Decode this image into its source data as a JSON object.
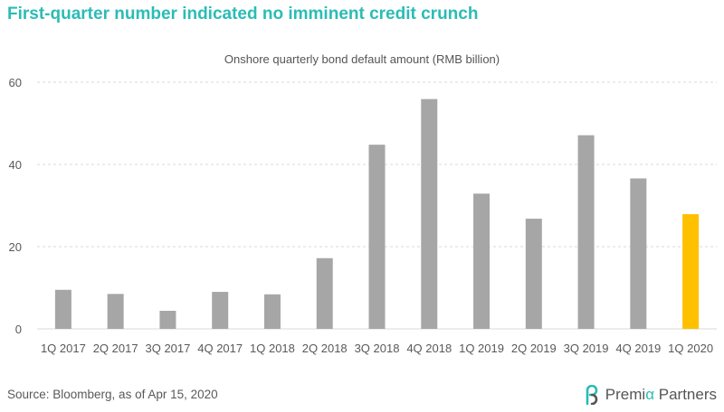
{
  "headline": "First-quarter number indicated no imminent credit crunch",
  "source": "Source: Bloomberg, as of Apr 15, 2020",
  "logo": {
    "part1": "Premi",
    "part2": "α",
    "part3": " Partners"
  },
  "colors": {
    "bar": "#a6a6a6",
    "highlight": "#ffc000",
    "headline": "#2bbcb5",
    "grid": "#d9d9d9"
  },
  "chart_data": {
    "type": "bar",
    "title": "Onshore quarterly bond default amount (RMB billion)",
    "categories": [
      "1Q 2017",
      "2Q 2017",
      "3Q 2017",
      "4Q 2017",
      "1Q 2018",
      "2Q 2018",
      "3Q 2018",
      "4Q 2018",
      "1Q 2019",
      "2Q 2019",
      "3Q 2019",
      "4Q 2019",
      "1Q 2020"
    ],
    "values": [
      9.5,
      8.5,
      4.4,
      9.0,
      8.4,
      17.2,
      44.8,
      55.9,
      32.9,
      26.8,
      47.1,
      36.6,
      27.9
    ],
    "highlight_category": "1Q 2020",
    "ylim": [
      0,
      60
    ],
    "yticks": [
      0,
      20,
      40,
      60
    ],
    "grid": true,
    "legend": "none"
  }
}
